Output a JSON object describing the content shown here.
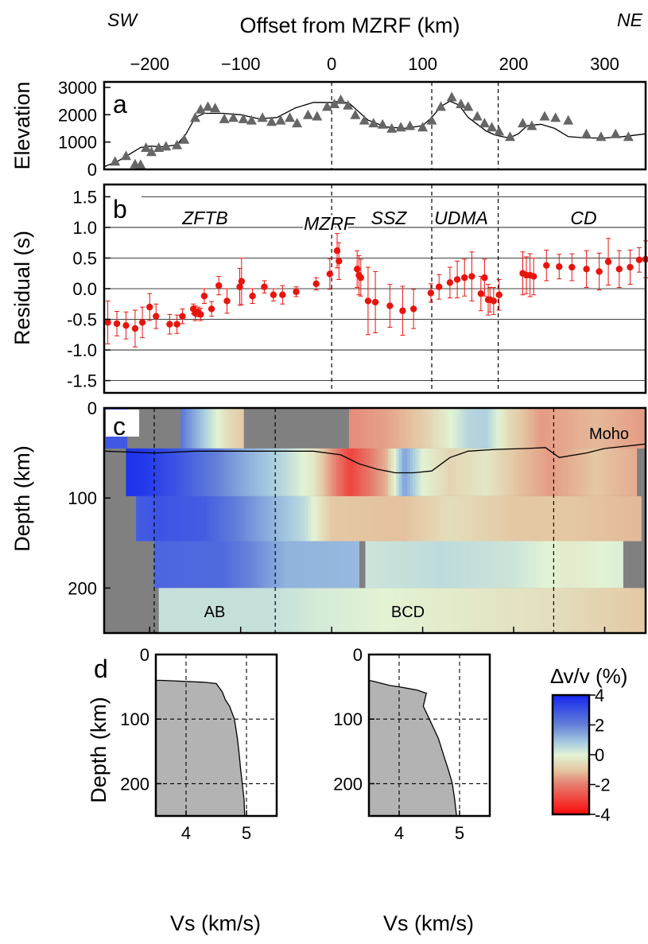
{
  "header": {
    "left_label": "SW",
    "right_label": "NE",
    "offset_axis_label": "Offset from MZRF (km)",
    "offset_ticks": [
      -200,
      -100,
      0,
      100,
      200,
      300
    ],
    "offset_range": [
      -250,
      345
    ]
  },
  "boundaries_km": [
    0,
    110,
    183
  ],
  "colors": {
    "elevation_marker": "#666666",
    "residual_marker": "#e8140c",
    "no_data": "#808080",
    "density_fill": "#b3b3b3"
  },
  "panel_a": {
    "letter": "a",
    "ylabel": "Elevation",
    "yticks": [
      0,
      1000,
      2000,
      3000
    ],
    "ylim": [
      0,
      3200
    ]
  },
  "panel_b": {
    "letter": "b",
    "ylabel": "Residual (s)",
    "ytick_labels": [
      "1.5",
      "1.0",
      "0.5",
      "0.0",
      "-0.5",
      "-1.0",
      "-1.5"
    ],
    "ylim": [
      -1.7,
      1.7
    ],
    "regions": [
      "ZFTB",
      "MZRF",
      "SSZ",
      "UDMA",
      "CD"
    ]
  },
  "panel_c": {
    "letter": "c",
    "ylabel": "Depth (km)",
    "yticks": [
      0,
      100,
      200
    ],
    "ylim": [
      0,
      250
    ],
    "moho_label": "Moho",
    "block_labels": [
      "AB",
      "BCD"
    ],
    "boundaries_km": [
      -195,
      -62,
      244
    ]
  },
  "panel_d": {
    "letter": "d",
    "ylabel": "Depth (km)",
    "xlabel": "Vs (km/s)",
    "xticks": [
      4,
      5
    ],
    "yticks": [
      0,
      100,
      200
    ],
    "xlim": [
      3.5,
      5.5
    ],
    "ylim": [
      0,
      250
    ]
  },
  "colorbar": {
    "title": "∆v/v (%)",
    "ticks": [
      "4",
      "2",
      "0",
      "-2",
      "-4"
    ]
  },
  "chart_data": [
    {
      "type": "line",
      "title": "",
      "xlabel": "Offset from MZRF (km)",
      "ylabel": "Elevation",
      "xlim": [
        -250,
        345
      ],
      "ylim": [
        0,
        3200
      ],
      "grid": false,
      "series": [
        {
          "kind": "line",
          "x": [
            -250,
            -235,
            -220,
            -210,
            -200,
            -185,
            -170,
            -160,
            -150,
            -140,
            -120,
            -100,
            -80,
            -60,
            -40,
            -20,
            0,
            10,
            20,
            30,
            40,
            60,
            80,
            100,
            110,
            120,
            130,
            140,
            150,
            160,
            170,
            180,
            195,
            205,
            215,
            230,
            245,
            260,
            280,
            300,
            320,
            345
          ],
          "values": [
            100,
            300,
            600,
            800,
            850,
            830,
            900,
            1300,
            1900,
            2050,
            2050,
            2000,
            1850,
            1900,
            2250,
            2450,
            2450,
            2500,
            2400,
            2100,
            1800,
            1550,
            1500,
            1600,
            1900,
            2300,
            2500,
            2350,
            1900,
            1650,
            1400,
            1250,
            1150,
            1300,
            1600,
            1650,
            1500,
            1200,
            1150,
            1150,
            1200,
            1300
          ]
        },
        {
          "kind": "scatter",
          "x": [
            -248,
            -238,
            -226,
            -216,
            -210,
            -204,
            -198,
            -190,
            -182,
            -170,
            -162,
            -150,
            -144,
            -136,
            -128,
            -118,
            -108,
            -97,
            -88,
            -76,
            -66,
            -56,
            -46,
            -38,
            -26,
            -16,
            -5,
            3,
            10,
            18,
            26,
            36,
            46,
            56,
            66,
            76,
            86,
            100,
            110,
            120,
            132,
            142,
            150,
            160,
            168,
            176,
            184,
            196,
            210,
            220,
            234,
            246,
            260,
            280,
            296,
            312,
            326,
            344
          ],
          "values": [
            150,
            300,
            500,
            200,
            180,
            800,
            650,
            800,
            850,
            900,
            1100,
            1900,
            2200,
            2300,
            2250,
            1850,
            1900,
            1850,
            1800,
            1900,
            1750,
            1800,
            1900,
            1700,
            2000,
            1950,
            2300,
            2400,
            2550,
            2350,
            2000,
            1800,
            1700,
            1650,
            1500,
            1550,
            1600,
            1550,
            1800,
            2300,
            2650,
            2400,
            2300,
            1950,
            1700,
            1550,
            1400,
            1200,
            1700,
            1600,
            1950,
            1900,
            1800,
            1300,
            1200,
            1300,
            1200,
            1450
          ]
        }
      ]
    },
    {
      "type": "scatter",
      "title": "",
      "xlabel": "Offset from MZRF (km)",
      "ylabel": "Residual (s)",
      "xlim": [
        -250,
        345
      ],
      "ylim": [
        -1.7,
        1.7
      ],
      "grid": true,
      "series": [
        {
          "x": [
            -246,
            -236,
            -226,
            -216,
            -208,
            -200,
            -193,
            -178,
            -170,
            -164,
            -152,
            -150,
            -147,
            -144,
            -140,
            -132,
            -124,
            -115,
            -101,
            -99,
            -87,
            -74,
            -64,
            -54,
            -39,
            -17,
            -2,
            6,
            8,
            28,
            30,
            32,
            40,
            48,
            64,
            78,
            90,
            109,
            118,
            130,
            138,
            146,
            154,
            164,
            168,
            172,
            174,
            178,
            184,
            210,
            214,
            218,
            222,
            236,
            250,
            264,
            280,
            294,
            304,
            316,
            328,
            338,
            345
          ],
          "values": [
            -0.55,
            -0.57,
            -0.6,
            -0.65,
            -0.55,
            -0.3,
            -0.45,
            -0.58,
            -0.58,
            -0.45,
            -0.33,
            -0.4,
            -0.38,
            -0.42,
            -0.12,
            -0.33,
            0.05,
            -0.2,
            0.03,
            0.12,
            -0.12,
            0.03,
            -0.1,
            -0.1,
            -0.05,
            0.08,
            0.24,
            0.62,
            0.45,
            0.32,
            0.22,
            0.18,
            -0.2,
            -0.22,
            -0.28,
            -0.36,
            -0.33,
            -0.07,
            0.03,
            0.1,
            0.15,
            0.18,
            0.2,
            -0.08,
            0.18,
            -0.18,
            -0.18,
            -0.2,
            -0.1,
            0.25,
            0.22,
            0.22,
            0.2,
            0.38,
            0.36,
            0.35,
            0.32,
            0.28,
            0.44,
            0.32,
            0.35,
            0.47,
            0.48
          ],
          "error": [
            0.35,
            0.2,
            0.22,
            0.3,
            0.25,
            0.22,
            0.2,
            0.16,
            0.15,
            0.12,
            0.08,
            0.12,
            0.08,
            0.1,
            0.12,
            0.12,
            0.15,
            0.2,
            0.3,
            0.38,
            0.12,
            0.1,
            0.1,
            0.15,
            0.08,
            0.1,
            0.25,
            0.28,
            0.3,
            0.3,
            0.32,
            0.3,
            0.55,
            0.5,
            0.35,
            0.4,
            0.32,
            0.15,
            0.2,
            0.25,
            0.3,
            0.3,
            0.4,
            0.28,
            0.3,
            0.25,
            0.2,
            0.22,
            0.25,
            0.35,
            0.3,
            0.35,
            0.3,
            0.25,
            0.2,
            0.22,
            0.3,
            0.3,
            0.38,
            0.3,
            0.28,
            0.2,
            0.3
          ]
        }
      ]
    },
    {
      "type": "heatmap",
      "title": "",
      "xlabel": "Offset from MZRF (km)",
      "ylabel": "Depth (km)",
      "xlim": [
        -250,
        345
      ],
      "ylim": [
        0,
        250
      ],
      "color_range": [
        -4,
        4
      ],
      "bands": [
        {
          "depth": [
            0,
            45
          ],
          "segments": [
            {
              "x": [
                -250,
                -225
              ],
              "knots": [
                [
                  -250,
                  2.9
                ],
                [
                  -225,
                  2.9
                ]
              ]
            },
            {
              "x": [
                -166,
                -97
              ],
              "knots": [
                [
                  -166,
                  2.2
                ],
                [
                  -150,
                  1.3
                ],
                [
                  -135,
                  0.5
                ],
                [
                  -115,
                  -0.5
                ],
                [
                  -97,
                  -1.0
                ]
              ]
            },
            {
              "x": [
                19,
                345
              ],
              "knots": [
                [
                  19,
                  -1.8
                ],
                [
                  60,
                  -1.5
                ],
                [
                  100,
                  -0.9
                ],
                [
                  125,
                  -0.2
                ],
                [
                  150,
                  0.6
                ],
                [
                  170,
                  0.7
                ],
                [
                  195,
                  -0.6
                ],
                [
                  230,
                  -1.6
                ],
                [
                  290,
                  -1.2
                ],
                [
                  345,
                  -1.6
                ]
              ]
            }
          ]
        },
        {
          "depth": [
            45,
            98
          ],
          "segments": [
            {
              "x": [
                -226,
                335
              ],
              "knots": [
                [
                  -226,
                  3.8
                ],
                [
                  -205,
                  3.6
                ],
                [
                  -170,
                  3.0
                ],
                [
                  -100,
                  1.4
                ],
                [
                  -50,
                  0.5
                ],
                [
                  -20,
                  -0.3
                ],
                [
                  5,
                  -2.0
                ],
                [
                  20,
                  -3.0
                ],
                [
                  60,
                  -1.3
                ],
                [
                  80,
                  1.5
                ],
                [
                  100,
                  0.0
                ],
                [
                  130,
                  -0.7
                ],
                [
                  170,
                  -0.3
                ],
                [
                  200,
                  -1.0
                ],
                [
                  240,
                  -1.6
                ],
                [
                  290,
                  -1.0
                ],
                [
                  335,
                  -1.4
                ]
              ]
            }
          ]
        },
        {
          "depth": [
            98,
            148
          ],
          "segments": [
            {
              "x": [
                -215,
                340
              ],
              "knots": [
                [
                  -215,
                  2.8
                ],
                [
                  -190,
                  3.0
                ],
                [
                  -140,
                  2.8
                ],
                [
                  -80,
                  1.5
                ],
                [
                  -30,
                  0.5
                ],
                [
                  0,
                  -1.0
                ],
                [
                  80,
                  -1.1
                ],
                [
                  130,
                  -0.5
                ],
                [
                  200,
                  -1.0
                ],
                [
                  260,
                  -1.0
                ],
                [
                  340,
                  -1.2
                ]
              ]
            }
          ]
        },
        {
          "depth": [
            148,
            200
          ],
          "segments": [
            {
              "x": [
                -195,
                30
              ],
              "knots": [
                [
                  -195,
                  2.6
                ],
                [
                  -120,
                  2.5
                ],
                [
                  -50,
                  1.2
                ],
                [
                  30,
                  1.1
                ]
              ]
            },
            {
              "x": [
                37,
                320
              ],
              "knots": [
                [
                  37,
                  0.3
                ],
                [
                  120,
                  0.5
                ],
                [
                  200,
                  0.3
                ],
                [
                  260,
                  -0.2
                ],
                [
                  320,
                  0.1
                ]
              ]
            }
          ]
        },
        {
          "depth": [
            200,
            250
          ],
          "segments": [
            {
              "x": [
                -190,
                345
              ],
              "knots": [
                [
                  -190,
                  0.4
                ],
                [
                  -62,
                  0.4
                ],
                [
                  -20,
                  0.2
                ],
                [
                  244,
                  -0.5
                ],
                [
                  345,
                  -1.0
                ]
              ]
            }
          ]
        }
      ],
      "moho": {
        "x": [
          -250,
          -220,
          -195,
          -150,
          -100,
          -62,
          -20,
          10,
          30,
          50,
          70,
          90,
          110,
          130,
          150,
          180,
          215,
          235,
          250,
          280,
          300,
          345
        ],
        "depth": [
          48,
          49,
          50,
          48,
          48,
          48,
          48,
          52,
          62,
          68,
          72,
          72,
          70,
          55,
          48,
          46,
          45,
          44,
          55,
          50,
          45,
          40
        ]
      }
    },
    {
      "type": "area",
      "title": "",
      "xlabel": "Vs (km/s)",
      "ylabel": "Depth (km)",
      "xlim": [
        3.5,
        5.5
      ],
      "ylim": [
        0,
        250
      ],
      "series": [
        {
          "vs": [
            3.5,
            3.5,
            3.6,
            4.3,
            4.5,
            4.6,
            4.65,
            4.72,
            4.8,
            4.85,
            4.88,
            4.9,
            4.93,
            4.96,
            4.97
          ],
          "depth": [
            0,
            40,
            40,
            43,
            45,
            58,
            70,
            80,
            100,
            130,
            155,
            175,
            200,
            225,
            250
          ]
        },
        {
          "vs": [
            3.5,
            3.5,
            3.6,
            3.85,
            4.0,
            4.3,
            4.45,
            4.4,
            4.5,
            4.65,
            4.75,
            4.82,
            4.88,
            4.92,
            4.95
          ],
          "depth": [
            0,
            40,
            42,
            48,
            50,
            55,
            60,
            80,
            100,
            130,
            160,
            180,
            200,
            225,
            250
          ]
        }
      ]
    }
  ]
}
